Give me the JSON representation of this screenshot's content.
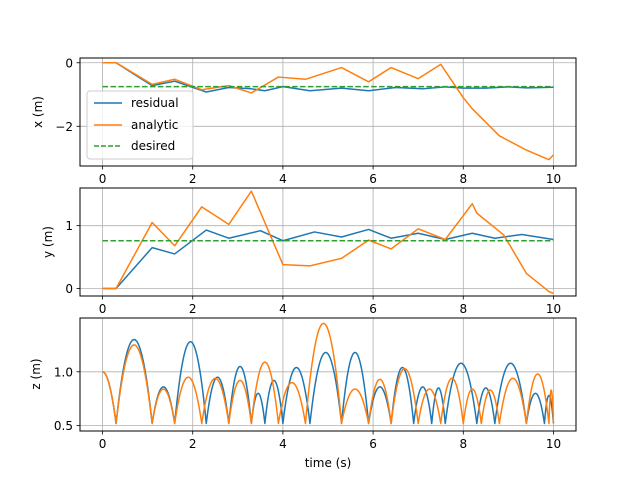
{
  "figure": {
    "xlabel": "time (s)",
    "legend": {
      "location": "center-left of top panel",
      "entries": [
        "residual",
        "analytic",
        "desired"
      ]
    },
    "colors": {
      "residual": "#1f77b4",
      "analytic": "#ff7f0e",
      "desired": "#2ca02c",
      "grid": "#b0b0b0"
    }
  },
  "chart_data": [
    {
      "type": "line",
      "ylabel": "x (m)",
      "xlim": [
        -0.5,
        10.5
      ],
      "ylim": [
        -3.25,
        0.15
      ],
      "xticks": [
        "0",
        "2",
        "4",
        "6",
        "8",
        "10"
      ],
      "yticks": [
        {
          "value": 0,
          "label": "0"
        },
        {
          "value": -2,
          "label": "−2"
        }
      ],
      "grid": true,
      "series": [
        {
          "name": "residual",
          "style": "solid",
          "x": [
            0,
            0.3,
            1.1,
            1.6,
            2.3,
            2.8,
            3.3,
            3.6,
            4.0,
            4.6,
            5.3,
            5.9,
            6.5,
            7.1,
            7.6,
            8.0,
            8.5,
            9.0,
            9.4,
            10.0
          ],
          "y": [
            0,
            0,
            -0.72,
            -0.58,
            -0.92,
            -0.78,
            -0.82,
            -0.88,
            -0.75,
            -0.88,
            -0.8,
            -0.88,
            -0.78,
            -0.82,
            -0.76,
            -0.8,
            -0.8,
            -0.76,
            -0.79,
            -0.77
          ]
        },
        {
          "name": "analytic",
          "style": "solid",
          "x": [
            0,
            0.3,
            1.1,
            1.6,
            2.2,
            2.8,
            3.3,
            3.9,
            4.5,
            5.3,
            5.9,
            6.4,
            7.0,
            7.5,
            8.0,
            8.2,
            8.8,
            9.4,
            9.9,
            10.0
          ],
          "y": [
            0,
            0,
            -0.68,
            -0.52,
            -0.85,
            -0.72,
            -0.95,
            -0.45,
            -0.52,
            -0.15,
            -0.6,
            -0.15,
            -0.5,
            -0.05,
            -1.1,
            -1.45,
            -2.3,
            -2.75,
            -3.05,
            -2.9
          ]
        },
        {
          "name": "desired",
          "style": "dashed",
          "x": [
            0,
            10
          ],
          "y": [
            -0.75,
            -0.75
          ]
        }
      ]
    },
    {
      "type": "line",
      "ylabel": "y (m)",
      "xlim": [
        -0.5,
        10.5
      ],
      "ylim": [
        -0.12,
        1.6
      ],
      "xticks": [
        "0",
        "2",
        "4",
        "6",
        "8",
        "10"
      ],
      "yticks": [
        {
          "value": 0,
          "label": "0"
        },
        {
          "value": 1,
          "label": "1"
        }
      ],
      "grid": true,
      "series": [
        {
          "name": "residual",
          "style": "solid",
          "x": [
            0,
            0.3,
            1.1,
            1.6,
            2.3,
            2.8,
            3.5,
            4.0,
            4.7,
            5.3,
            5.9,
            6.4,
            7.0,
            7.6,
            8.2,
            8.7,
            9.3,
            10.0
          ],
          "y": [
            0,
            0,
            0.65,
            0.55,
            0.93,
            0.8,
            0.92,
            0.76,
            0.9,
            0.82,
            0.94,
            0.8,
            0.88,
            0.78,
            0.88,
            0.8,
            0.86,
            0.78
          ]
        },
        {
          "name": "analytic",
          "style": "solid",
          "x": [
            0,
            0.3,
            1.1,
            1.6,
            2.2,
            2.8,
            3.3,
            4.0,
            4.6,
            5.3,
            5.9,
            6.4,
            7.0,
            7.6,
            8.2,
            8.3,
            8.9,
            9.4,
            9.9,
            10.0
          ],
          "y": [
            0,
            0,
            1.05,
            0.68,
            1.3,
            1.02,
            1.55,
            0.38,
            0.36,
            0.48,
            0.77,
            0.63,
            0.95,
            0.78,
            1.35,
            1.2,
            0.85,
            0.24,
            -0.05,
            -0.08
          ]
        },
        {
          "name": "desired",
          "style": "dashed",
          "x": [
            0,
            10
          ],
          "y": [
            0.76,
            0.76
          ]
        }
      ]
    },
    {
      "type": "line",
      "ylabel": "z (m)",
      "xlim": [
        -0.5,
        10.5
      ],
      "ylim": [
        0.45,
        1.5
      ],
      "xticks": [
        "0",
        "2",
        "4",
        "6",
        "8",
        "10"
      ],
      "yticks": [
        {
          "value": 0.5,
          "label": "0.5"
        },
        {
          "value": 1.0,
          "label": "1.0"
        }
      ],
      "grid": true,
      "series": [
        {
          "name": "residual",
          "style": "solid",
          "kind": "bounces",
          "initial": 1.0,
          "floor": 0.52,
          "bounces": [
            [
              0.3,
              1.1,
              1.3
            ],
            [
              1.1,
              1.6,
              0.86
            ],
            [
              1.6,
              2.3,
              1.28
            ],
            [
              2.3,
              2.8,
              0.95
            ],
            [
              2.8,
              3.3,
              1.05
            ],
            [
              3.3,
              3.6,
              0.8
            ],
            [
              3.6,
              4.0,
              0.92
            ],
            [
              4.0,
              4.6,
              1.04
            ],
            [
              4.6,
              5.3,
              1.18
            ],
            [
              5.3,
              5.9,
              1.18
            ],
            [
              5.9,
              6.4,
              0.86
            ],
            [
              6.4,
              6.9,
              1.04
            ],
            [
              6.9,
              7.3,
              0.86
            ],
            [
              7.3,
              7.6,
              0.85
            ],
            [
              7.6,
              8.3,
              1.08
            ],
            [
              8.3,
              8.7,
              0.85
            ],
            [
              8.7,
              9.4,
              1.08
            ],
            [
              9.4,
              9.8,
              0.8
            ],
            [
              9.8,
              10.0,
              0.78
            ]
          ]
        },
        {
          "name": "analytic",
          "style": "solid",
          "kind": "bounces",
          "initial": 1.0,
          "floor": 0.52,
          "bounces": [
            [
              0.3,
              1.1,
              1.25
            ],
            [
              1.1,
              1.6,
              0.84
            ],
            [
              1.6,
              2.2,
              0.95
            ],
            [
              2.2,
              2.8,
              0.94
            ],
            [
              2.8,
              3.3,
              0.92
            ],
            [
              3.3,
              3.9,
              1.09
            ],
            [
              3.9,
              4.5,
              0.9
            ],
            [
              4.5,
              5.3,
              1.45
            ],
            [
              5.3,
              5.9,
              0.84
            ],
            [
              5.9,
              6.4,
              0.93
            ],
            [
              6.4,
              7.0,
              1.03
            ],
            [
              7.0,
              7.5,
              0.84
            ],
            [
              7.5,
              8.0,
              0.94
            ],
            [
              8.0,
              8.4,
              0.84
            ],
            [
              8.4,
              8.8,
              0.83
            ],
            [
              8.8,
              9.4,
              0.94
            ],
            [
              9.4,
              9.9,
              0.98
            ],
            [
              9.9,
              10.0,
              0.83
            ]
          ]
        }
      ]
    }
  ]
}
